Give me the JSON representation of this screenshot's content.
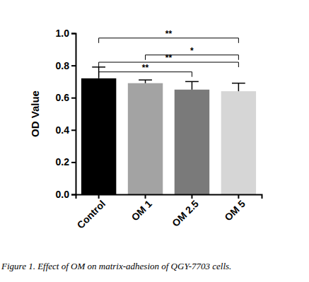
{
  "chart_data": {
    "type": "bar",
    "y_label": "OD Value",
    "caption": "Figure 1. Effect of OM on matrix-adhesion of QGY-7703 cells.",
    "categories": [
      "Control",
      "OM 1",
      "OM 2.5",
      "OM 5"
    ],
    "values": [
      0.72,
      0.69,
      0.65,
      0.64
    ],
    "errors": [
      0.07,
      0.02,
      0.05,
      0.05
    ],
    "colors": [
      "#000000",
      "#a3a3a3",
      "#7a7a7a",
      "#d6d6d6"
    ],
    "ylim": [
      0,
      1.0
    ],
    "yticks": [
      {
        "value": 0,
        "label": "0.0"
      },
      0.2,
      0.4,
      0.6,
      0.8,
      {
        "value": 1.0,
        "label": "1.0"
      }
    ],
    "grid": false,
    "annotations": [
      {
        "from": "Control",
        "to": "OM 5",
        "y": 0.97,
        "text": "**"
      },
      {
        "from": "OM 1",
        "to": "OM 5",
        "y": 0.865,
        "text": "*"
      },
      {
        "from": "Control",
        "to": "OM 5",
        "y": 0.82,
        "text": "**"
      },
      {
        "from": "Control",
        "to": "OM 2.5",
        "y": 0.76,
        "text": "**"
      }
    ]
  }
}
